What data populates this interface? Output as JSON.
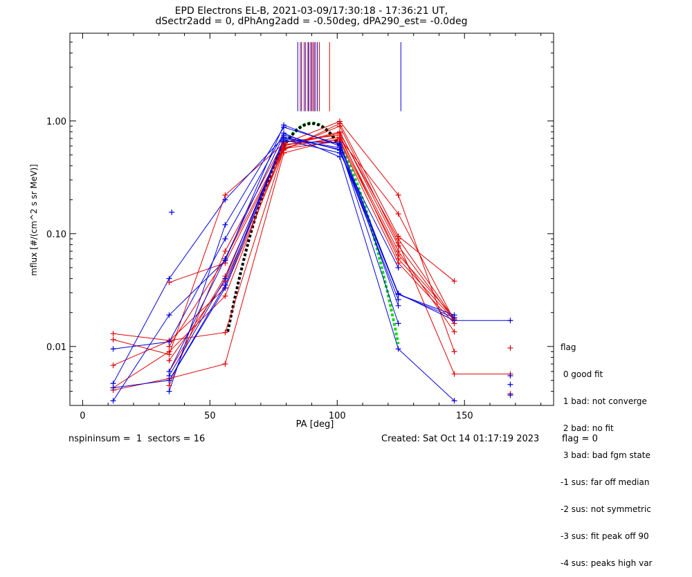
{
  "title": {
    "line1": "EPD Electrons EL-B, 2021-03-09/17:30:18 - 17:36:21 UT,",
    "line2": "dSectr2add = 0, dPhAng2add = -0.50deg, dPA290_est=  -0.0deg"
  },
  "footer": {
    "left": "nspininsum =  1  sectors = 16",
    "created": "Created: Sat Oct 14 01:17:19 2023",
    "flag": "flag = 0"
  },
  "legend": {
    "title": "flag",
    "items": [
      " 0 good fit",
      " 1 bad: not converge",
      " 2 bad: no fit",
      " 3 bad: bad fgm state",
      "-1 sus: far off median",
      "-2 sus: not symmetric",
      "-3 sus: fit peak off 90",
      "-4 sus: peaks high var"
    ]
  },
  "colors": {
    "red": "#e00000",
    "blue": "#0000e0",
    "black": "#000000",
    "green": "#00e000"
  },
  "chart_data": {
    "type": "line",
    "xlabel": "PA [deg]",
    "ylabel": "mflux [#/(cm^2 s sr MeV)]",
    "xlim": [
      -5,
      185
    ],
    "ylim": [
      0.003,
      6
    ],
    "yscale": "log",
    "xticks": [
      0,
      50,
      100,
      150
    ],
    "xtick_labels": [
      "0",
      "50",
      "100",
      "150"
    ],
    "yticks": [
      0.01,
      0.1,
      1.0
    ],
    "ytick_labels": [
      "0.01",
      "0.10",
      "1.00"
    ],
    "grid": false,
    "legend_position": "right",
    "x_pa": [
      12,
      34,
      56,
      79,
      101,
      124,
      146,
      168
    ],
    "series_red": [
      [
        0.013,
        0.0113,
        0.0133,
        0.56,
        0.9,
        0.083,
        0.0057,
        0.0057
      ],
      [
        0.0043,
        0.009,
        0.028,
        0.6,
        0.8,
        0.078,
        0.017,
        null
      ],
      [
        0.0068,
        0.0112,
        0.033,
        0.55,
        0.95,
        0.095,
        0.038,
        null
      ],
      [
        0.0041,
        0.0052,
        0.007,
        0.52,
        0.7,
        0.15,
        0.017,
        null
      ],
      [
        0.0115,
        0.0085,
        0.22,
        0.63,
        0.99,
        0.22,
        0.009,
        null
      ],
      [
        null,
        0.037,
        0.055,
        0.58,
        0.72,
        0.07,
        0.0135,
        null
      ],
      [
        null,
        0.0045,
        0.07,
        0.65,
        0.75,
        0.06,
        0.017,
        null
      ],
      [
        null,
        0.006,
        0.042,
        0.62,
        0.68,
        0.065,
        0.018,
        null
      ],
      [
        null,
        0.0075,
        0.038,
        0.57,
        0.66,
        0.055,
        0.016,
        null
      ],
      [
        null,
        0.01,
        0.06,
        0.6,
        0.78,
        0.09,
        0.0175,
        null
      ]
    ],
    "series_blue": [
      [
        0.0033,
        0.019,
        0.058,
        0.92,
        0.6,
        0.0295,
        0.017,
        0.017
      ],
      [
        0.0047,
        0.04,
        0.2,
        0.72,
        0.56,
        0.029,
        0.019,
        null
      ],
      [
        0.0043,
        0.005,
        0.033,
        0.66,
        0.64,
        0.029,
        0.018,
        null
      ],
      [
        0.0095,
        0.011,
        0.09,
        0.78,
        0.48,
        0.0095,
        0.0033,
        null
      ],
      [
        null,
        0.004,
        0.12,
        0.88,
        0.62,
        0.023,
        null,
        null
      ],
      [
        null,
        0.005,
        0.035,
        0.7,
        0.58,
        0.016,
        null,
        null
      ],
      [
        null,
        0.006,
        0.06,
        0.75,
        0.55,
        0.026,
        null,
        null
      ],
      [
        null,
        0.0055,
        0.04,
        0.68,
        0.52,
        0.05,
        null,
        null
      ]
    ],
    "extra_red_points": [
      [
        168,
        0.0097
      ],
      [
        168,
        0.0038
      ]
    ],
    "extra_blue_points": [
      [
        35,
        0.155
      ],
      [
        168,
        0.0055
      ],
      [
        168,
        0.0046
      ],
      [
        168,
        0.0037
      ]
    ],
    "fit_black": {
      "x_start": 57,
      "x_end": 101,
      "peak_pa": 90,
      "peak_value": 0.95
    },
    "fit_green": {
      "x_start": 79,
      "x_end": 124,
      "peak_pa": 90,
      "peak_value": 0.96
    },
    "peak_markers_red": [
      85.5,
      87,
      88.5,
      89.5,
      90.5,
      91.5,
      93,
      97
    ],
    "peak_markers_blue": [
      84.5,
      86,
      87.5,
      88.8,
      90,
      91,
      92.2,
      125
    ]
  }
}
